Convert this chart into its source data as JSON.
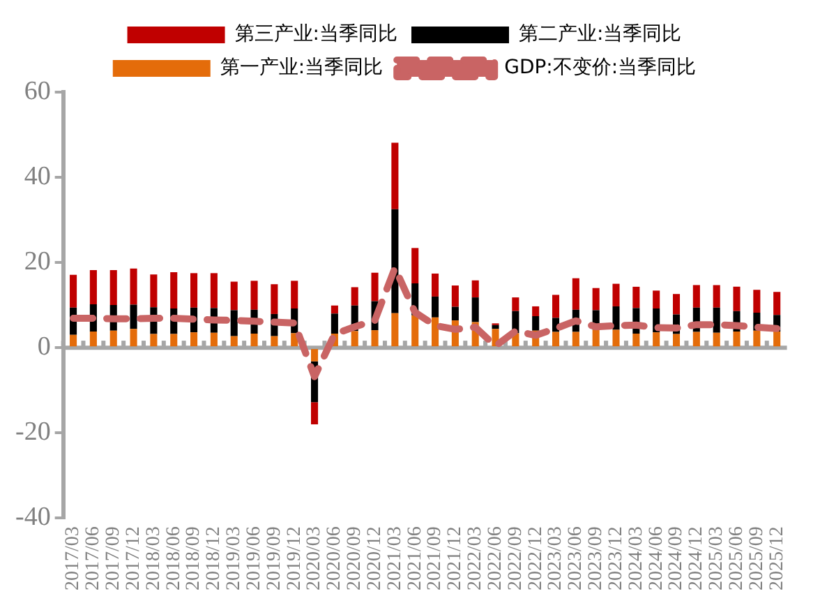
{
  "chart_data": {
    "type": "bar",
    "stacked": true,
    "categories": [
      "2017/03",
      "2017/06",
      "2017/09",
      "2017/12",
      "2018/03",
      "2018/06",
      "2018/09",
      "2018/12",
      "2019/03",
      "2019/06",
      "2019/09",
      "2019/12",
      "2020/03",
      "2020/06",
      "2020/09",
      "2020/12",
      "2021/03",
      "2021/06",
      "2021/09",
      "2021/12",
      "2022/03",
      "2022/06",
      "2022/09",
      "2022/12",
      "2023/03",
      "2023/06",
      "2023/09",
      "2023/12",
      "2024/03",
      "2024/06",
      "2024/09",
      "2024/12",
      "2025/03",
      "2025/06",
      "2025/09",
      "2025/12"
    ],
    "series": [
      {
        "name": "第一产业:当季同比",
        "color": "#e46c0a",
        "values": [
          3.0,
          3.8,
          4.0,
          4.4,
          3.2,
          3.2,
          3.6,
          3.5,
          2.7,
          3.3,
          2.7,
          3.4,
          -3.2,
          3.3,
          3.9,
          4.1,
          8.1,
          7.6,
          7.1,
          6.4,
          6.0,
          4.4,
          3.4,
          4.0,
          3.7,
          3.7,
          4.2,
          4.2,
          3.3,
          3.6,
          3.2,
          3.7,
          3.5,
          3.8,
          4.0,
          3.8
        ]
      },
      {
        "name": "第二产业:当季同比",
        "color": "#000000",
        "values": [
          6.4,
          6.4,
          6.0,
          5.7,
          6.3,
          6.0,
          5.8,
          5.8,
          6.1,
          5.6,
          5.2,
          5.8,
          -9.6,
          4.7,
          6.0,
          6.8,
          24.4,
          7.5,
          4.9,
          3.2,
          5.8,
          0.9,
          5.2,
          3.4,
          3.3,
          5.2,
          4.6,
          5.5,
          6.0,
          5.6,
          4.6,
          5.7,
          5.9,
          4.8,
          4.2,
          3.9
        ]
      },
      {
        "name": "第三产业:当季同比",
        "color": "#c00000",
        "values": [
          7.7,
          8.0,
          8.2,
          8.5,
          7.7,
          8.5,
          8.1,
          8.2,
          6.7,
          6.8,
          7.0,
          6.5,
          -5.2,
          1.9,
          4.3,
          6.7,
          15.6,
          8.3,
          5.4,
          5.0,
          4.0,
          0.4,
          3.2,
          2.3,
          5.4,
          7.4,
          5.2,
          5.3,
          5.0,
          4.2,
          4.8,
          5.3,
          5.3,
          5.7,
          5.4,
          5.4
        ]
      },
      {
        "name": "GDP:不变价:当季同比",
        "type": "line",
        "line_style": "dashed",
        "marker": "none",
        "color": "#c96464",
        "values": [
          6.9,
          6.9,
          6.8,
          6.8,
          6.9,
          6.9,
          6.7,
          6.5,
          6.4,
          6.2,
          6.0,
          5.8,
          -6.8,
          3.2,
          4.9,
          6.4,
          18.7,
          8.3,
          5.2,
          4.3,
          4.8,
          0.4,
          3.9,
          2.9,
          4.5,
          6.3,
          4.9,
          5.2,
          5.3,
          4.7,
          4.6,
          5.4,
          5.4,
          5.2,
          4.8,
          4.5
        ]
      }
    ],
    "ylim": [
      -40,
      60
    ],
    "yticks": [
      -40,
      -20,
      0,
      20,
      40,
      60
    ],
    "grid": false,
    "legend": "top",
    "ref_lines": [
      {
        "axis": "y",
        "value": 0,
        "color": "#a6a6a6"
      }
    ]
  }
}
